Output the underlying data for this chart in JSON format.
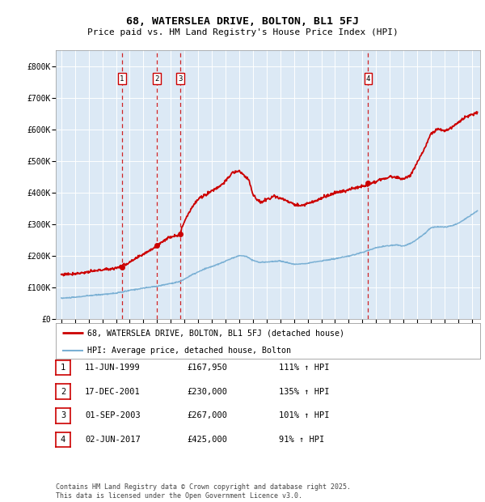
{
  "title": "68, WATERSLEA DRIVE, BOLTON, BL1 5FJ",
  "subtitle": "Price paid vs. HM Land Registry's House Price Index (HPI)",
  "bg_color": "#dce9f5",
  "red_line_color": "#cc0000",
  "blue_line_color": "#7ab0d4",
  "ylim": [
    0,
    850000
  ],
  "yticks": [
    0,
    100000,
    200000,
    300000,
    400000,
    500000,
    600000,
    700000,
    800000
  ],
  "ytick_labels": [
    "£0",
    "£100K",
    "£200K",
    "£300K",
    "£400K",
    "£500K",
    "£600K",
    "£700K",
    "£800K"
  ],
  "xlim_start": 1994.6,
  "xlim_end": 2025.6,
  "transactions": [
    {
      "num": 1,
      "date": "11-JUN-1999",
      "year": 1999.44,
      "price": 167950,
      "pct": "111%",
      "dir": "↑"
    },
    {
      "num": 2,
      "date": "17-DEC-2001",
      "year": 2001.96,
      "price": 230000,
      "pct": "135%",
      "dir": "↑"
    },
    {
      "num": 3,
      "date": "01-SEP-2003",
      "year": 2003.67,
      "price": 267000,
      "pct": "101%",
      "dir": "↑"
    },
    {
      "num": 4,
      "date": "02-JUN-2017",
      "year": 2017.42,
      "price": 425000,
      "pct": "91%",
      "dir": "↑"
    }
  ],
  "legend_label_red": "68, WATERSLEA DRIVE, BOLTON, BL1 5FJ (detached house)",
  "legend_label_blue": "HPI: Average price, detached house, Bolton",
  "footer": "Contains HM Land Registry data © Crown copyright and database right 2025.\nThis data is licensed under the Open Government Licence v3.0.",
  "table_rows": [
    [
      "1",
      "11-JUN-1999",
      "£167,950",
      "111% ↑ HPI"
    ],
    [
      "2",
      "17-DEC-2001",
      "£230,000",
      "135% ↑ HPI"
    ],
    [
      "3",
      "01-SEP-2003",
      "£267,000",
      "101% ↑ HPI"
    ],
    [
      "4",
      "02-JUN-2017",
      "£425,000",
      "91% ↑ HPI"
    ]
  ]
}
